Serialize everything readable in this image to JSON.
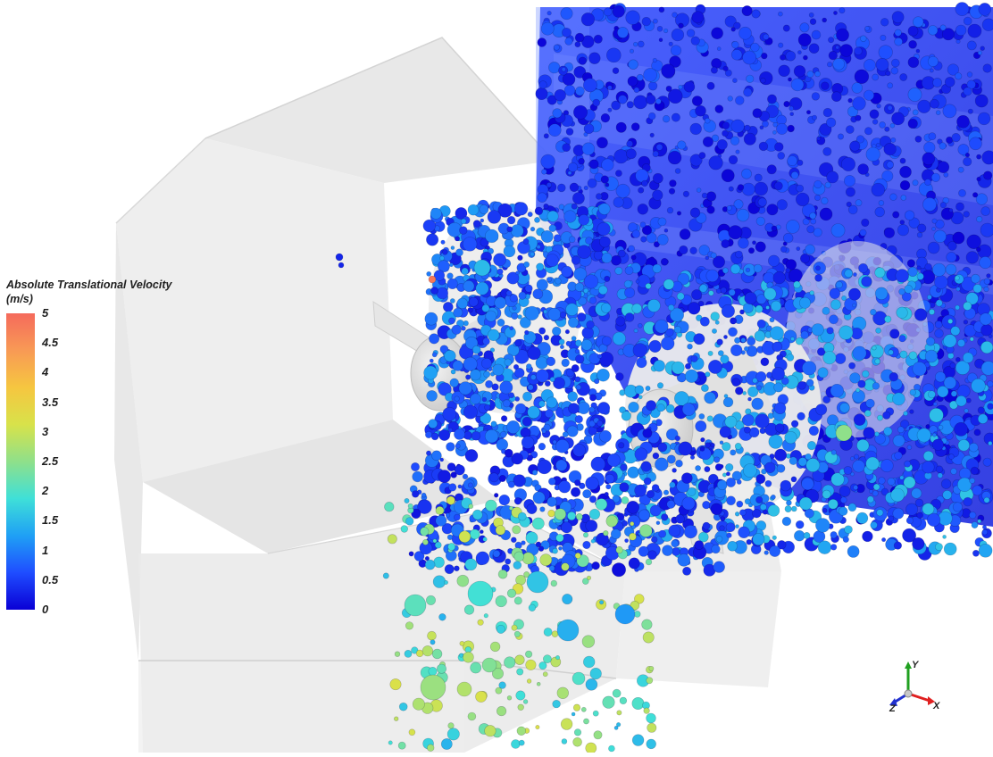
{
  "legend": {
    "title": "Absolute Translational Velocity",
    "unit": "(m/s)",
    "ticks": [
      "5",
      "4.5",
      "4",
      "3.5",
      "3",
      "2.5",
      "2",
      "1.5",
      "1",
      "0.5",
      "0"
    ],
    "min": 0,
    "max": 5,
    "colormap": [
      "#0a00d6",
      "#1f4dff",
      "#1fa0f5",
      "#3fe0d8",
      "#8fe08a",
      "#d8e24a",
      "#f6c640",
      "#f89a55",
      "#f56a5c"
    ]
  },
  "axes": {
    "x_label": "X",
    "y_label": "Y",
    "z_label": "Z",
    "colors": {
      "x": "#e02020",
      "y": "#20a020",
      "z": "#2030d0"
    }
  }
}
